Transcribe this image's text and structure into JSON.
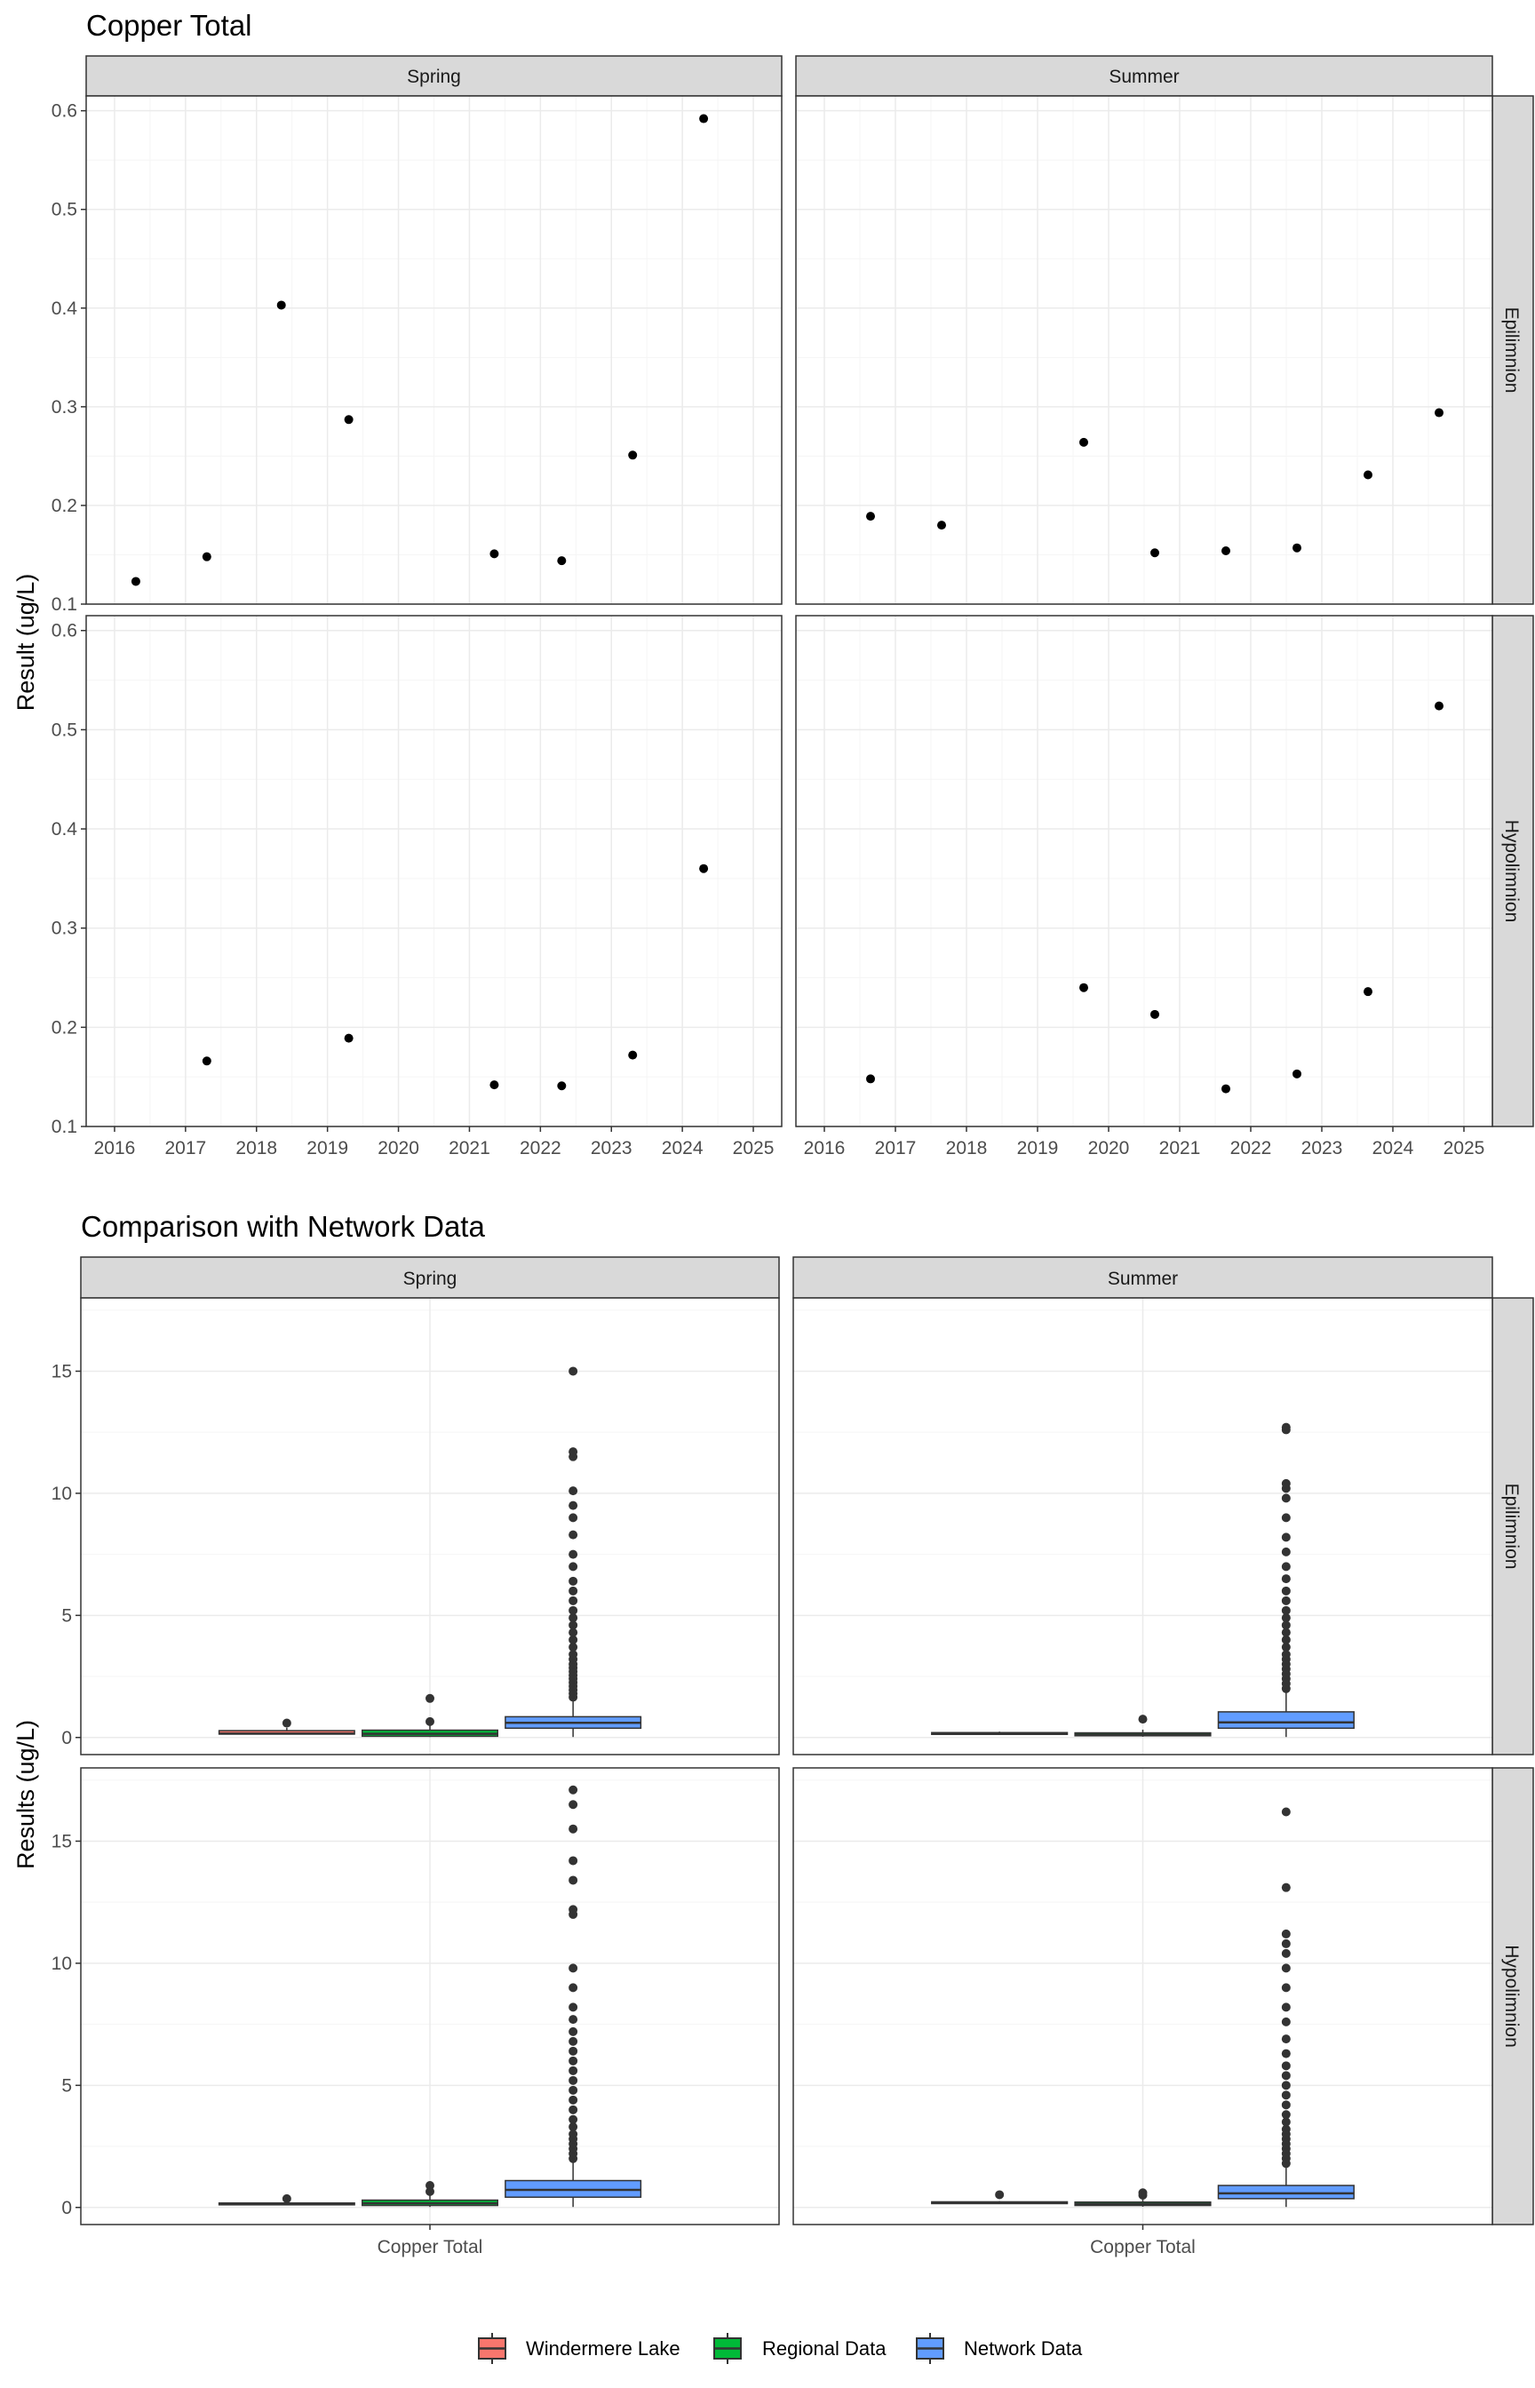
{
  "colors": {
    "windermere": "#F8766D",
    "regional": "#00BA38",
    "network": "#619CFF",
    "strip_fill": "#D9D9D9",
    "grid": "#EBEBEB",
    "points": "#000000",
    "outliers": "#333333"
  },
  "chart_data": [
    {
      "type": "scatter",
      "title": "Copper Total",
      "xlabel": "",
      "ylabel": "Result (ug/L)",
      "xlim": [
        2015.6,
        2025.4
      ],
      "ylim": [
        0.1,
        0.615
      ],
      "x_ticks": [
        "2016",
        "2017",
        "2018",
        "2019",
        "2020",
        "2021",
        "2022",
        "2023",
        "2024",
        "2025"
      ],
      "y_ticks": [
        "0.1",
        "0.2",
        "0.3",
        "0.4",
        "0.5",
        "0.6"
      ],
      "grid": true,
      "columns": [
        "Spring",
        "Summer"
      ],
      "rows": [
        "Epilimnion",
        "Hypolimnion"
      ],
      "panels": [
        {
          "column": "Spring",
          "row": "Epilimnion",
          "points": [
            [
              2016.3,
              0.123
            ],
            [
              2017.3,
              0.148
            ],
            [
              2018.35,
              0.403
            ],
            [
              2019.3,
              0.287
            ],
            [
              2021.35,
              0.151
            ],
            [
              2022.3,
              0.144
            ],
            [
              2023.3,
              0.251
            ],
            [
              2024.3,
              0.592
            ]
          ]
        },
        {
          "column": "Summer",
          "row": "Epilimnion",
          "points": [
            [
              2016.65,
              0.189
            ],
            [
              2017.65,
              0.18
            ],
            [
              2019.65,
              0.264
            ],
            [
              2020.65,
              0.152
            ],
            [
              2021.65,
              0.154
            ],
            [
              2022.65,
              0.157
            ],
            [
              2023.65,
              0.231
            ],
            [
              2024.65,
              0.294
            ]
          ]
        },
        {
          "column": "Spring",
          "row": "Hypolimnion",
          "points": [
            [
              2017.3,
              0.166
            ],
            [
              2019.3,
              0.189
            ],
            [
              2021.35,
              0.142
            ],
            [
              2022.3,
              0.141
            ],
            [
              2023.3,
              0.172
            ],
            [
              2024.3,
              0.36
            ]
          ]
        },
        {
          "column": "Summer",
          "row": "Hypolimnion",
          "points": [
            [
              2016.65,
              0.148
            ],
            [
              2019.65,
              0.24
            ],
            [
              2020.65,
              0.213
            ],
            [
              2021.65,
              0.138
            ],
            [
              2022.65,
              0.153
            ],
            [
              2023.65,
              0.236
            ],
            [
              2024.65,
              0.524
            ]
          ]
        }
      ]
    },
    {
      "type": "box",
      "title": "Comparison with Network Data",
      "xlabel": "",
      "ylabel": "Results (ug/L)",
      "categories": [
        "Copper Total"
      ],
      "ylim": [
        -0.7,
        18
      ],
      "y_ticks": [
        "0",
        "5",
        "10",
        "15"
      ],
      "grid": true,
      "legend_position": "bottom",
      "series": [
        {
          "name": "Windermere Lake"
        },
        {
          "name": "Regional Data"
        },
        {
          "name": "Network Data"
        }
      ],
      "columns": [
        "Spring",
        "Summer"
      ],
      "rows": [
        "Epilimnion",
        "Hypolimnion"
      ],
      "panels": [
        {
          "column": "Spring",
          "row": "Epilimnion",
          "boxes": [
            {
              "series": "Windermere Lake",
              "q1": 0.14,
              "median": 0.16,
              "q3": 0.28,
              "whisker_low": 0.12,
              "whisker_high": 0.4,
              "outliers": [
                0.59
              ]
            },
            {
              "series": "Regional Data",
              "q1": 0.05,
              "median": 0.15,
              "q3": 0.3,
              "whisker_low": 0.02,
              "whisker_high": 0.55,
              "outliers": [
                0.65,
                1.6
              ]
            },
            {
              "series": "Network Data",
              "q1": 0.38,
              "median": 0.6,
              "q3": 0.85,
              "whisker_low": 0.02,
              "whisker_high": 1.5,
              "outliers": [
                1.65,
                1.8,
                1.95,
                2.1,
                2.25,
                2.4,
                2.55,
                2.7,
                2.85,
                3.0,
                3.2,
                3.4,
                3.7,
                4.0,
                4.3,
                4.6,
                4.9,
                5.2,
                5.6,
                6.0,
                6.4,
                7.0,
                7.5,
                8.3,
                9.0,
                9.5,
                10.1,
                11.5,
                11.7,
                15.0
              ]
            }
          ]
        },
        {
          "column": "Summer",
          "row": "Epilimnion",
          "boxes": [
            {
              "series": "Windermere Lake",
              "q1": 0.15,
              "median": 0.16,
              "q3": 0.2,
              "whisker_low": 0.15,
              "whisker_high": 0.24,
              "outliers": []
            },
            {
              "series": "Regional Data",
              "q1": 0.07,
              "median": 0.12,
              "q3": 0.19,
              "whisker_low": 0.03,
              "whisker_high": 0.32,
              "outliers": [
                0.75
              ]
            },
            {
              "series": "Network Data",
              "q1": 0.38,
              "median": 0.62,
              "q3": 1.05,
              "whisker_low": 0.02,
              "whisker_high": 1.9,
              "outliers": [
                2.0,
                2.2,
                2.4,
                2.6,
                2.8,
                3.0,
                3.2,
                3.4,
                3.7,
                4.0,
                4.3,
                4.6,
                4.9,
                5.2,
                5.6,
                6.0,
                6.5,
                7.0,
                7.6,
                8.2,
                9.0,
                9.8,
                10.2,
                10.4,
                12.6,
                12.7
              ]
            }
          ]
        },
        {
          "column": "Spring",
          "row": "Hypolimnion",
          "boxes": [
            {
              "series": "Windermere Lake",
              "q1": 0.14,
              "median": 0.16,
              "q3": 0.18,
              "whisker_low": 0.14,
              "whisker_high": 0.19,
              "outliers": [
                0.36
              ]
            },
            {
              "series": "Regional Data",
              "q1": 0.08,
              "median": 0.17,
              "q3": 0.3,
              "whisker_low": 0.02,
              "whisker_high": 0.5,
              "outliers": [
                0.65,
                0.9
              ]
            },
            {
              "series": "Network Data",
              "q1": 0.42,
              "median": 0.72,
              "q3": 1.1,
              "whisker_low": 0.02,
              "whisker_high": 1.9,
              "outliers": [
                2.0,
                2.2,
                2.4,
                2.6,
                2.8,
                3.0,
                3.3,
                3.6,
                4.0,
                4.4,
                4.8,
                5.2,
                5.6,
                6.0,
                6.4,
                6.8,
                7.2,
                7.7,
                8.2,
                9.0,
                9.8,
                12.0,
                12.2,
                13.4,
                14.2,
                15.5,
                16.5,
                17.1
              ]
            }
          ]
        },
        {
          "column": "Summer",
          "row": "Hypolimnion",
          "boxes": [
            {
              "series": "Windermere Lake",
              "q1": 0.16,
              "median": 0.2,
              "q3": 0.23,
              "whisker_low": 0.14,
              "whisker_high": 0.26,
              "outliers": [
                0.52
              ]
            },
            {
              "series": "Regional Data",
              "q1": 0.08,
              "median": 0.14,
              "q3": 0.22,
              "whisker_low": 0.03,
              "whisker_high": 0.35,
              "outliers": [
                0.5,
                0.6
              ]
            },
            {
              "series": "Network Data",
              "q1": 0.36,
              "median": 0.58,
              "q3": 0.9,
              "whisker_low": 0.02,
              "whisker_high": 1.7,
              "outliers": [
                1.8,
                2.0,
                2.2,
                2.4,
                2.6,
                2.8,
                3.0,
                3.2,
                3.5,
                3.8,
                4.2,
                4.6,
                5.0,
                5.4,
                5.8,
                6.3,
                6.9,
                7.6,
                8.2,
                9.0,
                9.8,
                10.4,
                10.8,
                11.2,
                13.1,
                16.2
              ]
            }
          ]
        }
      ]
    }
  ]
}
